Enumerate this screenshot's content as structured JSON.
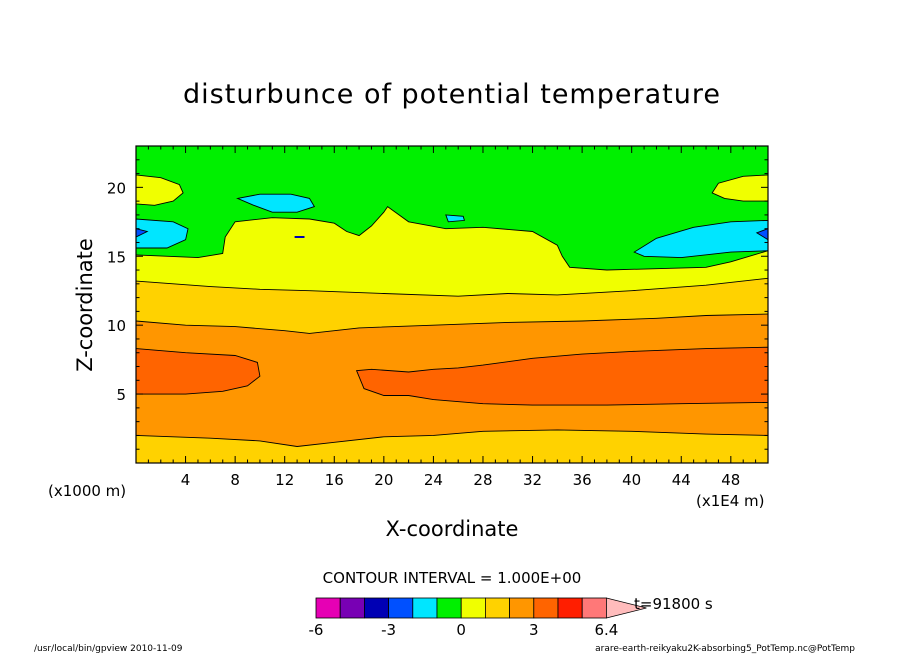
{
  "chart_data": {
    "type": "heatmap",
    "subtype": "filled-contour",
    "title": "disturbunce of potential temperature",
    "xlabel": "X-coordinate",
    "ylabel": "Z-coordinate",
    "x_unit_note": "(x1E4 m)",
    "y_unit_note": "(x1000 m)",
    "xlim": [
      0,
      51
    ],
    "ylim": [
      0,
      23
    ],
    "x_ticks": [
      4,
      8,
      12,
      16,
      20,
      24,
      28,
      32,
      36,
      40,
      44,
      48
    ],
    "y_ticks": [
      5,
      10,
      15,
      20
    ],
    "contour_interval_text": "CONTOUR INTERVAL = 1.000E+00",
    "time_text": "t=91800 s",
    "colorbar": {
      "levels": [
        -6,
        -5,
        -4,
        -3,
        -2,
        -1,
        0,
        1,
        2,
        3,
        4,
        5,
        6.4
      ],
      "tick_labels": [
        "-6",
        "-3",
        "0",
        "3",
        "6.4"
      ],
      "tick_values": [
        -6,
        -3,
        0,
        3,
        6.4
      ],
      "colors": [
        "#e600b4",
        "#7800b4",
        "#0000b4",
        "#0050ff",
        "#00e6ff",
        "#00f000",
        "#f0ff00",
        "#ffd200",
        "#ff9600",
        "#ff6400",
        "#ff1e00",
        "#ff7878"
      ],
      "overflow_color": "#ffbcbc"
    },
    "bands": [
      {
        "level": "1 to 2",
        "color": "#ffd200",
        "bottom": [
          [
            0,
            0
          ],
          [
            51,
            0
          ]
        ],
        "top": [
          [
            0,
            2
          ],
          [
            6,
            1.8
          ],
          [
            10,
            1.6
          ],
          [
            13,
            1.2
          ],
          [
            16,
            1.5
          ],
          [
            20,
            1.9
          ],
          [
            24,
            2.0
          ],
          [
            28,
            2.3
          ],
          [
            34,
            2.4
          ],
          [
            40,
            2.3
          ],
          [
            46,
            2.1
          ],
          [
            51,
            2.0
          ]
        ]
      },
      {
        "level": "2 to 3",
        "color": "#ff9600",
        "top": [
          [
            0,
            10.3
          ],
          [
            4,
            10.0
          ],
          [
            8,
            9.9
          ],
          [
            12,
            9.6
          ],
          [
            14,
            9.4
          ],
          [
            18,
            9.8
          ],
          [
            24,
            10.0
          ],
          [
            30,
            10.2
          ],
          [
            36,
            10.3
          ],
          [
            42,
            10.5
          ],
          [
            46,
            10.7
          ],
          [
            51,
            10.8
          ]
        ]
      },
      {
        "level": "3 to 4 (left)",
        "color": "#ff6400",
        "outline": [
          [
            0,
            5.0
          ],
          [
            4,
            5.0
          ],
          [
            7,
            5.2
          ],
          [
            9,
            5.6
          ],
          [
            10,
            6.3
          ],
          [
            9.8,
            7.3
          ],
          [
            8,
            7.8
          ],
          [
            4,
            8.0
          ],
          [
            0,
            8.3
          ]
        ]
      },
      {
        "level": "3 to 4 (right)",
        "color": "#ff6400",
        "outline": [
          [
            17.8,
            6.7
          ],
          [
            18.4,
            5.4
          ],
          [
            20,
            4.9
          ],
          [
            22,
            4.9
          ],
          [
            24,
            4.6
          ],
          [
            28,
            4.3
          ],
          [
            32,
            4.2
          ],
          [
            38,
            4.2
          ],
          [
            44,
            4.3
          ],
          [
            51,
            4.4
          ],
          [
            51,
            8.4
          ],
          [
            46,
            8.3
          ],
          [
            40,
            8.1
          ],
          [
            36,
            7.9
          ],
          [
            32,
            7.6
          ],
          [
            28,
            7.1
          ],
          [
            26,
            6.9
          ],
          [
            24,
            6.8
          ],
          [
            22,
            6.6
          ],
          [
            19,
            6.8
          ]
        ]
      },
      {
        "level": "0 to 1",
        "color": "#f0ff00",
        "top": [
          [
            0,
            13.2
          ],
          [
            6,
            12.8
          ],
          [
            10,
            12.6
          ],
          [
            14,
            12.5
          ],
          [
            20,
            12.3
          ],
          [
            26,
            12.1
          ],
          [
            30,
            12.3
          ],
          [
            34,
            12.2
          ],
          [
            40,
            12.5
          ],
          [
            46,
            12.9
          ],
          [
            51,
            13.4
          ]
        ]
      },
      {
        "level": "-1 to 0",
        "color": "#00f000",
        "boundary": [
          [
            0,
            15.1
          ],
          [
            5,
            14.9
          ],
          [
            7,
            15.2
          ],
          [
            7.2,
            16.4
          ],
          [
            8,
            17.5
          ],
          [
            11,
            17.8
          ],
          [
            14,
            17.7
          ],
          [
            16,
            17.4
          ],
          [
            17,
            16.8
          ],
          [
            18,
            16.5
          ],
          [
            19,
            17.2
          ],
          [
            20,
            18.2
          ],
          [
            20.3,
            18.6
          ],
          [
            22,
            17.5
          ],
          [
            25,
            17.0
          ],
          [
            28,
            17.1
          ],
          [
            32,
            16.8
          ],
          [
            34,
            15.8
          ],
          [
            34.4,
            15.0
          ],
          [
            35,
            14.2
          ],
          [
            38,
            14.0
          ],
          [
            42,
            14.1
          ],
          [
            46,
            14.2
          ],
          [
            48,
            14.6
          ],
          [
            51,
            15.4
          ]
        ]
      },
      {
        "level": "0 to 1 (upper left)",
        "color": "#f0ff00",
        "outline": [
          [
            0,
            20.9
          ],
          [
            2,
            20.7
          ],
          [
            3.5,
            20.2
          ],
          [
            3.8,
            19.6
          ],
          [
            3,
            19.0
          ],
          [
            1.5,
            18.7
          ],
          [
            0,
            18.8
          ]
        ]
      },
      {
        "level": "0 to 1 (upper right)",
        "color": "#f0ff00",
        "outline": [
          [
            51,
            20.9
          ],
          [
            49,
            20.8
          ],
          [
            47,
            20.3
          ],
          [
            46.5,
            19.6
          ],
          [
            47.5,
            19.2
          ],
          [
            49,
            19.0
          ],
          [
            51,
            19.0
          ]
        ]
      },
      {
        "level": "-2 to -1 (upper)",
        "color": "#00e6ff",
        "outline": [
          [
            8.2,
            19.2
          ],
          [
            10,
            19.5
          ],
          [
            12.5,
            19.5
          ],
          [
            14,
            19.2
          ],
          [
            14.4,
            18.6
          ],
          [
            13,
            18.2
          ],
          [
            11,
            18.2
          ],
          [
            9.5,
            18.7
          ]
        ]
      },
      {
        "level": "-2 to -1 (left)",
        "color": "#00e6ff",
        "outline": [
          [
            0,
            17.7
          ],
          [
            3,
            17.5
          ],
          [
            4.2,
            17.0
          ],
          [
            4.0,
            16.2
          ],
          [
            2.5,
            15.6
          ],
          [
            0,
            15.6
          ]
        ]
      },
      {
        "level": "-2 to -1 (small)",
        "color": "#00e6ff",
        "outline": [
          [
            25,
            18.0
          ],
          [
            26.4,
            17.9
          ],
          [
            26.5,
            17.6
          ],
          [
            25.2,
            17.5
          ]
        ]
      },
      {
        "level": "-2 to -1 (right)",
        "color": "#00e6ff",
        "outline": [
          [
            40.2,
            15.3
          ],
          [
            42,
            16.3
          ],
          [
            45,
            17.1
          ],
          [
            48,
            17.5
          ],
          [
            51,
            17.6
          ],
          [
            51,
            15.4
          ],
          [
            48,
            15.3
          ],
          [
            44,
            14.9
          ],
          [
            41,
            15.0
          ]
        ]
      },
      {
        "level": "-3 to -2 (left edge)",
        "color": "#0050ff",
        "outline": [
          [
            0,
            17.0
          ],
          [
            0.9,
            16.8
          ],
          [
            0,
            16.4
          ]
        ]
      },
      {
        "level": "-3 to -2 (right edge)",
        "color": "#0050ff",
        "outline": [
          [
            51,
            17.0
          ],
          [
            50.1,
            16.7
          ],
          [
            51,
            16.2
          ]
        ]
      }
    ]
  },
  "footer": {
    "left": "/usr/local/bin/gpview  2010-11-09",
    "right": "arare-earth-reikyaku2K-absorbing5_PotTemp.nc@PotTemp"
  }
}
